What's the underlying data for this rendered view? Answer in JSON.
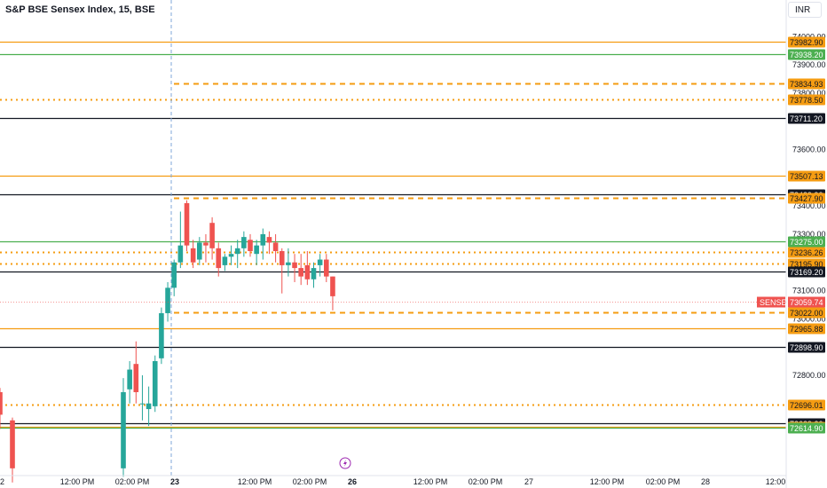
{
  "header": {
    "title": "S&P BSE Sensex Index, 15, BSE",
    "currency": "INR"
  },
  "chart_data": {
    "type": "candlestick",
    "instrument": "S&P BSE Sensex Index",
    "interval": "15",
    "exchange": "BSE",
    "currency": "INR",
    "ylim": [
      72560,
      74040
    ],
    "y_ticks": [
      74000,
      73900,
      73800,
      73600,
      73400,
      73300,
      73100,
      73000,
      72800
    ],
    "x_ticks": [
      "2",
      "12:00 PM",
      "02:00 PM",
      "23",
      "12:00 PM",
      "02:00 PM",
      "26",
      "12:00 PM",
      "02:00 PM",
      "27",
      "12:00 PM",
      "02:00 PM",
      "28",
      "12:00"
    ],
    "last_price": {
      "label": "SENSEX",
      "value": "73059.74",
      "color": "#ef5350"
    },
    "session_divider_index": 3,
    "event_marker_index": 6,
    "levels": [
      {
        "value": "73982.90",
        "color": "#f59c12",
        "style": "solid"
      },
      {
        "value": "73938.20",
        "color": "#4caf50",
        "style": "solid"
      },
      {
        "value": "73834.93",
        "color": "#f59c12",
        "style": "dashed"
      },
      {
        "value": "73778.50",
        "color": "#f59c12",
        "style": "dotted"
      },
      {
        "value": "73711.20",
        "color": "#131722",
        "style": "solid"
      },
      {
        "value": "73507.13",
        "color": "#f59c12",
        "style": "solid"
      },
      {
        "value": "73439.90",
        "color": "#131722",
        "style": "solid"
      },
      {
        "value": "73427.90",
        "color": "#f59c12",
        "style": "dashed"
      },
      {
        "value": "73275.00",
        "color": "#4caf50",
        "style": "solid"
      },
      {
        "value": "73236.26",
        "color": "#f59c12",
        "style": "dotted"
      },
      {
        "value": "73195.90",
        "color": "#f59c12",
        "style": "dotted"
      },
      {
        "value": "73169.20",
        "color": "#131722",
        "style": "solid"
      },
      {
        "value": "73022.00",
        "color": "#f59c12",
        "style": "dashed"
      },
      {
        "value": "72965.88",
        "color": "#f59c12",
        "style": "solid"
      },
      {
        "value": "72898.90",
        "color": "#131722",
        "style": "solid"
      },
      {
        "value": "72696.01",
        "color": "#f59c12",
        "style": "dotted"
      },
      {
        "value": "72629.20",
        "color": "#131722",
        "style": "solid"
      },
      {
        "value": "72617.20",
        "color": "#f59c12",
        "style": "solid"
      },
      {
        "value": "72614.90",
        "color": "#4caf50",
        "style": "solid"
      }
    ],
    "candles": [
      [
        72740,
        72755,
        72610,
        72660
      ],
      [
        72640,
        72650,
        72420,
        72470
      ],
      [
        72470,
        72790,
        72440,
        72740
      ],
      [
        72750,
        72850,
        72700,
        72820
      ],
      [
        72840,
        72920,
        72700,
        72740
      ],
      [
        72700,
        72800,
        72640,
        72700
      ],
      [
        72680,
        72760,
        72620,
        72700
      ],
      [
        72690,
        72870,
        72670,
        72850
      ],
      [
        72860,
        73040,
        72840,
        73020
      ],
      [
        73020,
        73130,
        72990,
        73110
      ],
      [
        73110,
        73210,
        73080,
        73200
      ],
      [
        73200,
        73380,
        73180,
        73260
      ],
      [
        73410,
        73420,
        73240,
        73260
      ],
      [
        73250,
        73280,
        73180,
        73200
      ],
      [
        73210,
        73290,
        73190,
        73270
      ],
      [
        73270,
        73300,
        73200,
        73260
      ],
      [
        73340,
        73360,
        73210,
        73250
      ],
      [
        73250,
        73270,
        73150,
        73180
      ],
      [
        73190,
        73230,
        73170,
        73220
      ],
      [
        73220,
        73260,
        73190,
        73230
      ],
      [
        73230,
        73280,
        73180,
        73250
      ],
      [
        73250,
        73310,
        73220,
        73290
      ],
      [
        73280,
        73300,
        73220,
        73240
      ],
      [
        73230,
        73280,
        73190,
        73260
      ],
      [
        73260,
        73320,
        73210,
        73300
      ],
      [
        73290,
        73310,
        73230,
        73270
      ],
      [
        73270,
        73300,
        73200,
        73240
      ],
      [
        73240,
        73250,
        73090,
        73190
      ],
      [
        73190,
        73250,
        73150,
        73200
      ],
      [
        73200,
        73230,
        73130,
        73180
      ],
      [
        73180,
        73230,
        73120,
        73150
      ],
      [
        73190,
        73240,
        73120,
        73140
      ],
      [
        73140,
        73200,
        73110,
        73180
      ],
      [
        73190,
        73230,
        73150,
        73210
      ],
      [
        73210,
        73230,
        73130,
        73150
      ],
      [
        73150,
        73150,
        73030,
        73080
      ]
    ]
  }
}
